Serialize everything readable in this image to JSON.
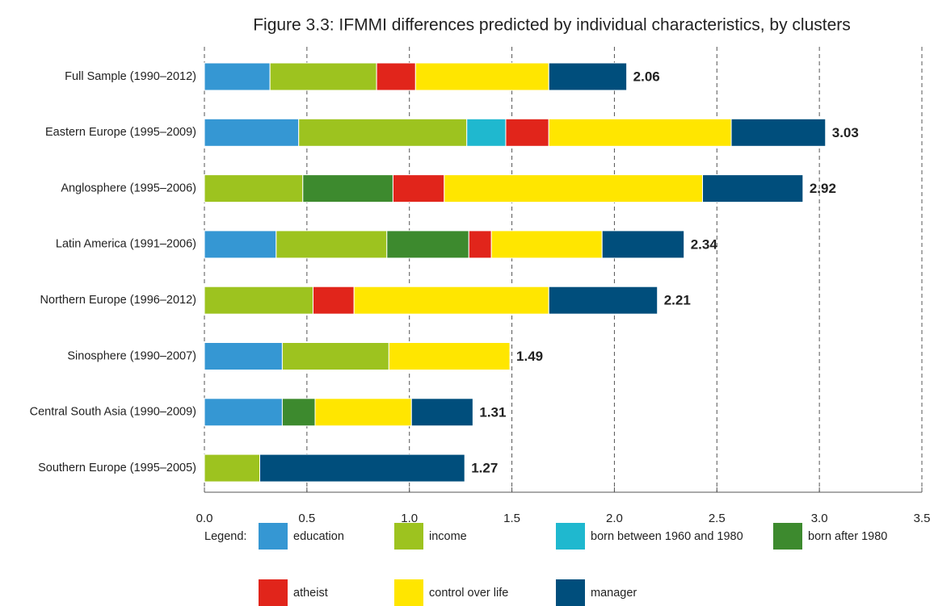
{
  "chart_data": {
    "type": "stacked_barh",
    "title": "Figure 3.3: IFMMI differences predicted by individual characteristics, by clusters",
    "legend_title": "Legend:",
    "categories": [
      "Full Sample (1990–2012)",
      "Eastern Europe (1995–2009)",
      "Anglosphere (1995–2006)",
      "Latin America (1991–2006)",
      "Northern Europe (1996–2012)",
      "Sinosphere (1990–2007)",
      "Central South Asia (1990–2009)",
      "Southern Europe (1995–2005)"
    ],
    "series": [
      {
        "name": "education",
        "color": "#3597d3",
        "values": [
          0.32,
          0.46,
          null,
          0.35,
          null,
          0.38,
          0.38,
          null
        ]
      },
      {
        "name": "income",
        "color": "#9dc31f",
        "values": [
          0.52,
          0.82,
          0.48,
          0.54,
          0.53,
          0.52,
          null,
          0.27
        ]
      },
      {
        "name": "born between 1960 and 1980",
        "color": "#1fb8cf",
        "values": [
          null,
          0.19,
          null,
          null,
          null,
          null,
          null,
          null
        ]
      },
      {
        "name": "born after 1980",
        "color": "#3d8a2e",
        "values": [
          null,
          null,
          0.44,
          0.4,
          null,
          null,
          0.16,
          null
        ]
      },
      {
        "name": "atheist",
        "color": "#e1251b",
        "values": [
          0.19,
          0.21,
          0.25,
          0.11,
          0.2,
          null,
          null,
          null
        ]
      },
      {
        "name": "control over life",
        "color": "#ffe600",
        "values": [
          0.65,
          0.89,
          1.26,
          0.54,
          0.95,
          0.59,
          0.47,
          null
        ]
      },
      {
        "name": "manager",
        "color": "#004e7c",
        "values": [
          0.38,
          0.46,
          0.49,
          0.4,
          0.53,
          null,
          0.3,
          1.0
        ]
      }
    ],
    "totals": [
      2.06,
      3.03,
      2.92,
      2.34,
      2.21,
      1.49,
      1.31,
      1.27
    ],
    "xlim": [
      0,
      3.5
    ],
    "xticks": [
      {
        "value": 0,
        "label": "0.0"
      },
      0.5,
      {
        "value": 1,
        "label": "1.0"
      },
      1.5,
      {
        "value": 2,
        "label": "2.0"
      },
      2.5,
      {
        "value": 3,
        "label": "3.0"
      },
      3.5
    ],
    "grid": true
  }
}
